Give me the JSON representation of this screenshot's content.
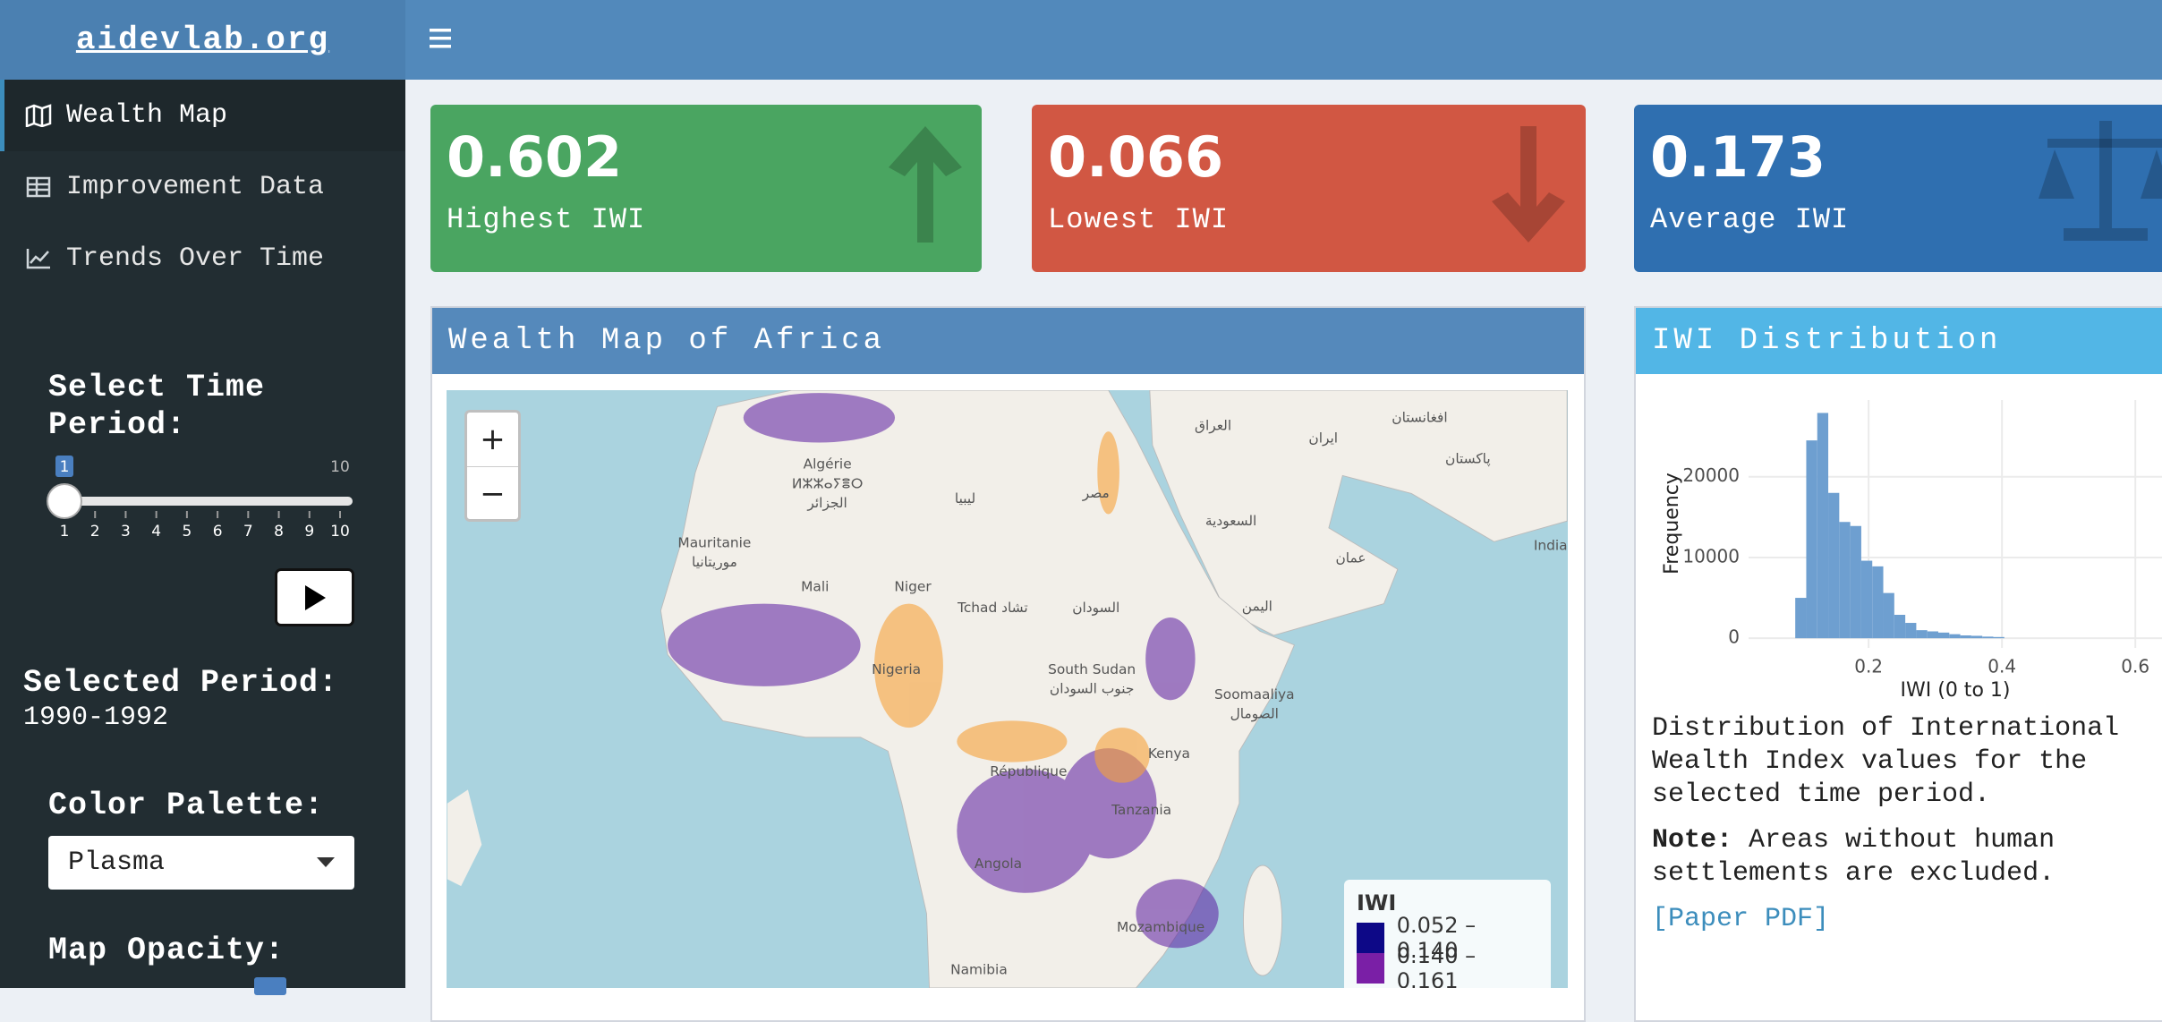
{
  "brand": "aidevlab.org",
  "menu": [
    "Wealth Map",
    "Improvement Data",
    "Trends Over Time"
  ],
  "sidebar": {
    "time_label": "Select Time Period:",
    "time_slider": {
      "value": 1,
      "max": 10,
      "ticks": [
        1,
        2,
        3,
        4,
        5,
        6,
        7,
        8,
        9,
        10
      ]
    },
    "selected_label": "Selected Period:",
    "selected_value": "1990-1992",
    "palette_label": "Color Palette:",
    "palette_value": "Plasma",
    "opacity_label": "Map Opacity:"
  },
  "value_boxes": [
    {
      "value": 0.602,
      "label": "Highest IWI",
      "color": "#4aa561"
    },
    {
      "value": 0.066,
      "label": "Lowest IWI",
      "color": "#d15743"
    },
    {
      "value": 0.173,
      "label": "Average IWI",
      "color": "#2f6fb0"
    }
  ],
  "map": {
    "title": "Wealth Map of Africa",
    "zoom_in": "+",
    "zoom_out": "−",
    "labels": [
      "Algérie",
      "ⵍⵣⵣⴰⵢⴻⵔ",
      "الجزائر",
      "Mauritanie",
      "موريتانيا",
      "Mali",
      "Niger",
      "Tchad تشاد",
      "السودان",
      "ليبيا",
      "مصر",
      "العراق",
      "ایران",
      "افغانستان",
      "پاکستان",
      "السعودية",
      "عمان",
      "اليمن",
      "India",
      "South Sudan",
      "جنوب السودان",
      "Soomaaliya",
      "الصومال",
      "Nigeria",
      "Kenya",
      "République",
      "Tanzania",
      "Angola",
      "Mozambique",
      "Namibia"
    ],
    "legend": {
      "title": "IWI",
      "entries": [
        {
          "label": "0.052 – 0.140",
          "color": "#0d0887"
        },
        {
          "label": "0.140 – 0.161",
          "color": "#7a1fa6"
        }
      ]
    }
  },
  "distribution": {
    "title": "IWI Distribution",
    "chart": {
      "type": "histogram",
      "xlabel": "IWI (0 to 1)",
      "ylabel": "Frequency",
      "bins": [
        0.09,
        0.1065,
        0.123,
        0.1395,
        0.156,
        0.1725,
        0.189,
        0.2055,
        0.222,
        0.2385,
        0.255,
        0.2715,
        0.288,
        0.3045,
        0.321,
        0.3375,
        0.354,
        0.3705,
        0.387,
        0.4035
      ],
      "counts": [
        5000,
        24500,
        27900,
        18000,
        14400,
        13900,
        9600,
        8900,
        5600,
        2900,
        1900,
        1000,
        850,
        700,
        500,
        350,
        300,
        200,
        150
      ],
      "color": "#6e9fd0",
      "xlim": [
        0.02,
        0.64
      ],
      "ylim": [
        -1200,
        29500
      ],
      "xticks": [
        0.2,
        0.4,
        0.6
      ],
      "yticks": [
        0,
        10000,
        20000
      ],
      "grid": true
    },
    "description": "Distribution of International Wealth Index values for the selected time period.",
    "note_label": "Note:",
    "note": "Areas without human settlements are excluded.",
    "link": "[Paper PDF]"
  }
}
